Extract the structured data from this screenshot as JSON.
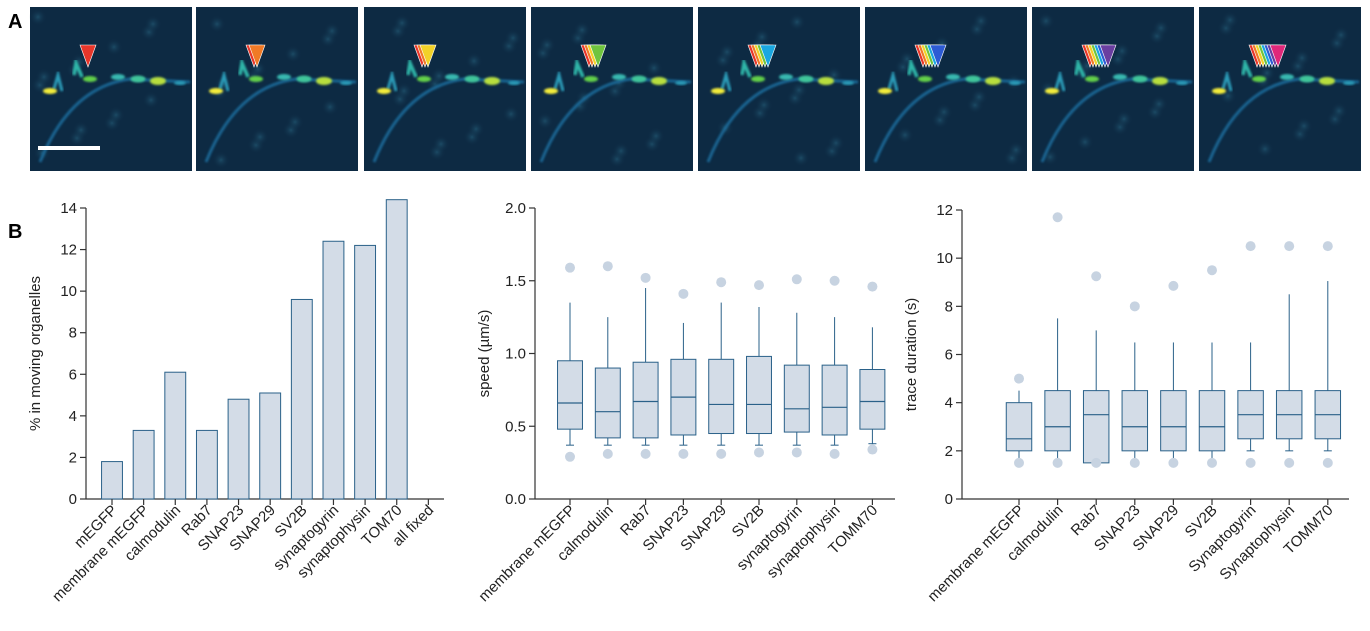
{
  "panel_labels": {
    "a": "A",
    "b": "B"
  },
  "micrographs": {
    "frame_count": 8,
    "arrow_colors": [
      "#e8362a",
      "#f07a26",
      "#f2d228",
      "#6fc43e",
      "#1aa7e0",
      "#2d5bd4",
      "#6a3ea0",
      "#e0287a"
    ]
  },
  "chart_data": [
    {
      "type": "bar",
      "ylabel": "% in moving organelles",
      "ylim": [
        0,
        14
      ],
      "yticks": [
        0,
        2,
        4,
        6,
        8,
        10,
        12,
        14
      ],
      "categories": [
        "mEGFP",
        "membrane mEGFP",
        "calmodulin",
        "Rab7",
        "SNAP23",
        "SNAP29",
        "SV2B",
        "synaptogyrin",
        "synaptophysin",
        "TOM70",
        "all fixed"
      ],
      "values": [
        1.8,
        3.3,
        6.1,
        3.3,
        4.8,
        5.1,
        9.6,
        12.4,
        12.2,
        14.4,
        0
      ],
      "color": "#d3dce7",
      "edge": "#2a6189"
    },
    {
      "type": "box",
      "ylabel": "speed (µm/s)",
      "ylim": [
        0,
        2.0
      ],
      "yticks": [
        "0.0",
        "0.5",
        "1.0",
        "1.5",
        "2.0"
      ],
      "categories": [
        "membrane mEGFP",
        "calmodulin",
        "Rab7",
        "SNAP23",
        "SNAP29",
        "SV2B",
        "synaptogyrin",
        "synaptophysin",
        "TOMM70"
      ],
      "boxes": [
        {
          "whislo": 0.37,
          "q1": 0.48,
          "med": 0.66,
          "q3": 0.95,
          "whishi": 1.35,
          "fliers": [
            0.29,
            1.59
          ]
        },
        {
          "whislo": 0.37,
          "q1": 0.42,
          "med": 0.6,
          "q3": 0.9,
          "whishi": 1.25,
          "fliers": [
            0.31,
            1.6
          ]
        },
        {
          "whislo": 0.37,
          "q1": 0.42,
          "med": 0.67,
          "q3": 0.94,
          "whishi": 1.45,
          "fliers": [
            0.31,
            1.52
          ]
        },
        {
          "whislo": 0.37,
          "q1": 0.44,
          "med": 0.7,
          "q3": 0.96,
          "whishi": 1.21,
          "fliers": [
            0.31,
            1.41
          ]
        },
        {
          "whislo": 0.37,
          "q1": 0.45,
          "med": 0.65,
          "q3": 0.96,
          "whishi": 1.35,
          "fliers": [
            0.31,
            1.49
          ]
        },
        {
          "whislo": 0.37,
          "q1": 0.45,
          "med": 0.65,
          "q3": 0.98,
          "whishi": 1.32,
          "fliers": [
            0.32,
            1.47
          ]
        },
        {
          "whislo": 0.37,
          "q1": 0.46,
          "med": 0.62,
          "q3": 0.92,
          "whishi": 1.28,
          "fliers": [
            0.32,
            1.51
          ]
        },
        {
          "whislo": 0.37,
          "q1": 0.44,
          "med": 0.63,
          "q3": 0.92,
          "whishi": 1.25,
          "fliers": [
            0.31,
            1.5
          ]
        },
        {
          "whislo": 0.38,
          "q1": 0.48,
          "med": 0.67,
          "q3": 0.89,
          "whishi": 1.18,
          "fliers": [
            0.34,
            1.46
          ]
        }
      ]
    },
    {
      "type": "box",
      "ylabel": "trace duration (s)",
      "ylim": [
        0,
        12
      ],
      "yticks": [
        "0",
        "2",
        "4",
        "6",
        "8",
        "10",
        "12"
      ],
      "categories": [
        "membrane mEGFP",
        "calmodulin",
        "Rab7",
        "SNAP23",
        "SNAP29",
        "SV2B",
        "Synaptogyrin",
        "Synaptophysin",
        "TOMM70"
      ],
      "boxes": [
        {
          "whislo": 1.5,
          "q1": 2.0,
          "med": 2.5,
          "q3": 4.0,
          "whishi": 4.5,
          "fliers": [
            1.5,
            5.0
          ]
        },
        {
          "whislo": 1.5,
          "q1": 2.0,
          "med": 3.0,
          "q3": 4.5,
          "whishi": 7.5,
          "fliers": [
            1.5,
            11.7
          ]
        },
        {
          "whislo": 1.5,
          "q1": 1.5,
          "med": 3.5,
          "q3": 4.5,
          "whishi": 7.0,
          "fliers": [
            1.5,
            9.25
          ]
        },
        {
          "whislo": 1.5,
          "q1": 2.0,
          "med": 3.0,
          "q3": 4.5,
          "whishi": 6.5,
          "fliers": [
            1.5,
            8.0
          ]
        },
        {
          "whislo": 1.5,
          "q1": 2.0,
          "med": 3.0,
          "q3": 4.5,
          "whishi": 6.5,
          "fliers": [
            1.5,
            8.85
          ]
        },
        {
          "whislo": 1.5,
          "q1": 2.0,
          "med": 3.0,
          "q3": 4.5,
          "whishi": 6.5,
          "fliers": [
            1.5,
            9.5
          ]
        },
        {
          "whislo": 2.0,
          "q1": 2.5,
          "med": 3.5,
          "q3": 4.5,
          "whishi": 6.5,
          "fliers": [
            1.5,
            10.5
          ]
        },
        {
          "whislo": 2.0,
          "q1": 2.5,
          "med": 3.5,
          "q3": 4.5,
          "whishi": 8.5,
          "fliers": [
            1.5,
            10.5
          ]
        },
        {
          "whislo": 2.0,
          "q1": 2.5,
          "med": 3.5,
          "q3": 4.5,
          "whishi": 9.05,
          "fliers": [
            1.5,
            10.5
          ]
        }
      ]
    }
  ]
}
